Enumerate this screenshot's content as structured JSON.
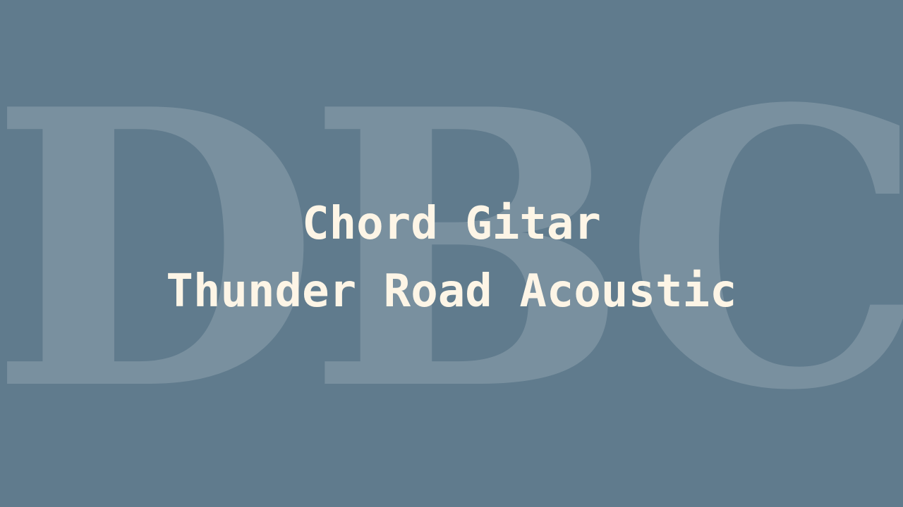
{
  "watermark": {
    "text": "DBC"
  },
  "title": {
    "line1": "Chord Gitar",
    "line2": "Thunder Road Acoustic"
  },
  "colors": {
    "background": "#607b8d",
    "title_text": "#fdf5e6",
    "watermark_text": "rgba(255,255,255,0.16)"
  }
}
